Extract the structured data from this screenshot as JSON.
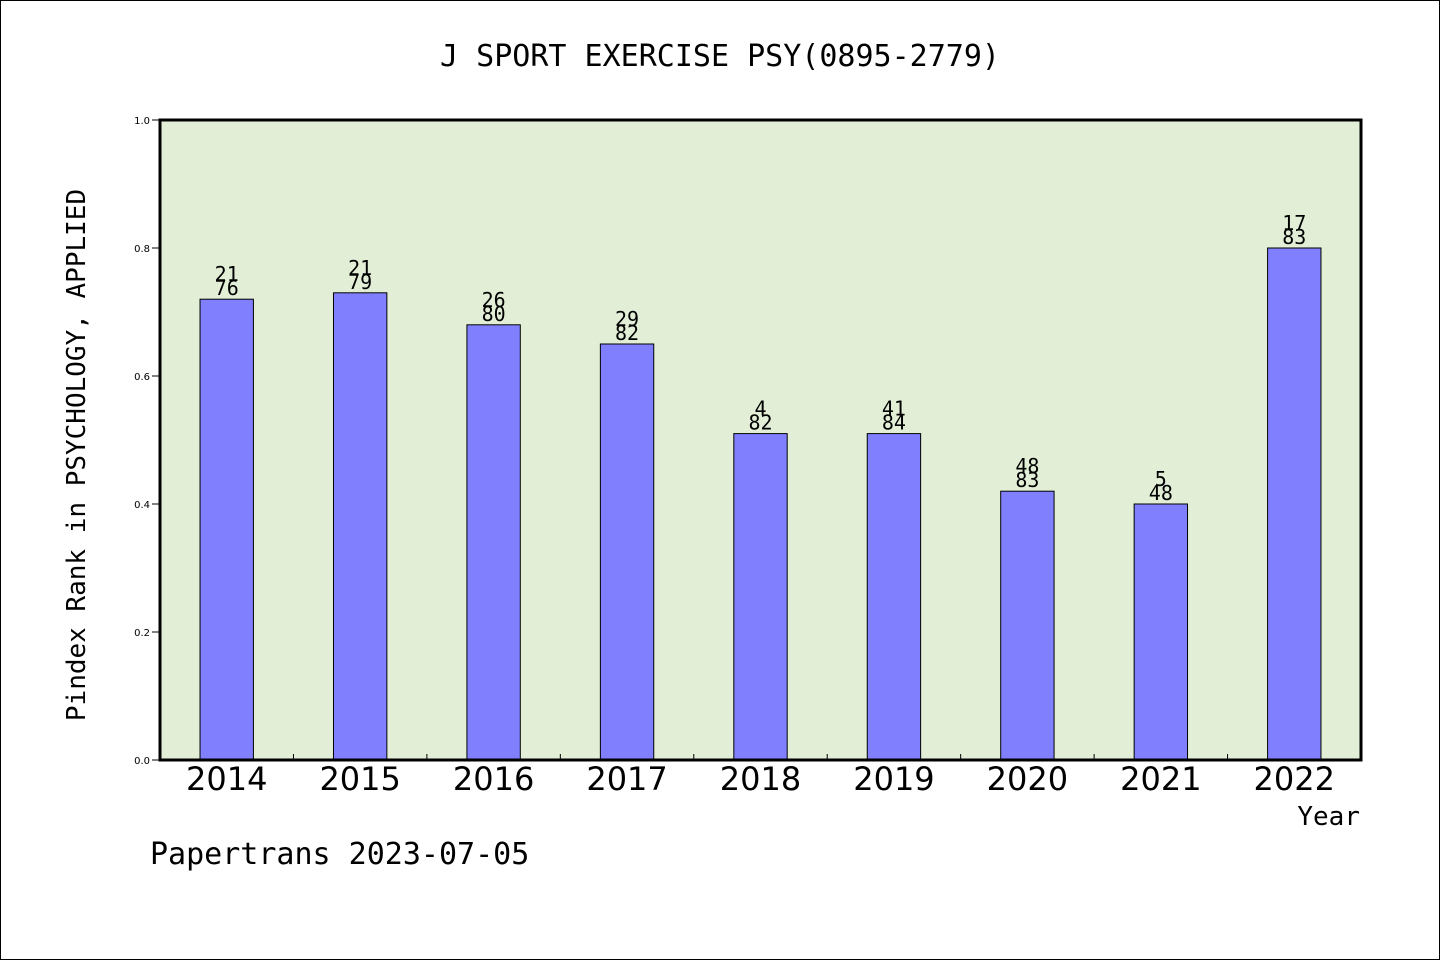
{
  "chart_data": {
    "type": "bar",
    "title": "J SPORT EXERCISE PSY(0895-2779)",
    "xlabel": "Year",
    "ylabel": "Pindex Rank in PSYCHOLOGY, APPLIED",
    "ylim": [
      0,
      1.0
    ],
    "yticks": [
      "0.0",
      "0.2",
      "0.4",
      "0.6",
      "0.8",
      "1.0"
    ],
    "categories": [
      "2014",
      "2015",
      "2016",
      "2017",
      "2018",
      "2019",
      "2020",
      "2021",
      "2022"
    ],
    "values": [
      0.72,
      0.73,
      0.68,
      0.65,
      0.51,
      0.51,
      0.42,
      0.4,
      0.8
    ],
    "rank_labels": [
      "21",
      "21",
      "26",
      "29",
      "4",
      "41",
      "48",
      "5",
      "17"
    ],
    "total_labels": [
      "76",
      "79",
      "80",
      "82",
      "82",
      "84",
      "83",
      "48",
      "83"
    ],
    "grid": false,
    "legend": "none",
    "colors": {
      "bar": "#8080ff",
      "plot_background": "#e2efd6"
    }
  },
  "footer": {
    "credit": "Papertrans 2023-07-05"
  }
}
